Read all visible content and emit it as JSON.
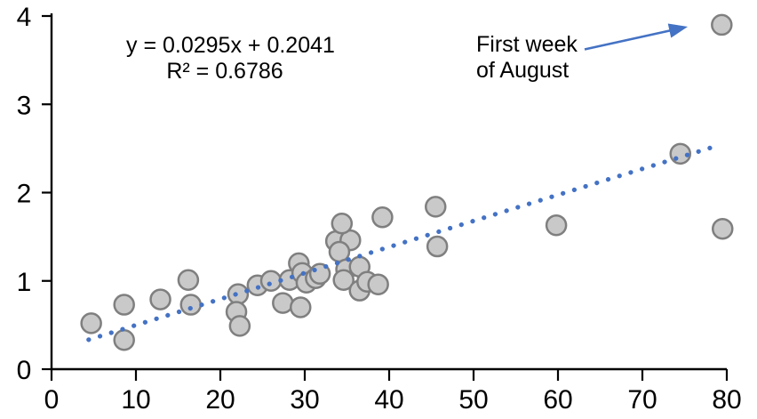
{
  "chart_data": {
    "type": "scatter",
    "title": "",
    "xlabel": "",
    "ylabel": "",
    "xlim": [
      0,
      80
    ],
    "ylim": [
      0,
      4
    ],
    "x_ticks": [
      0,
      10,
      20,
      30,
      40,
      50,
      60,
      70,
      80
    ],
    "y_ticks": [
      0,
      1,
      2,
      3,
      4
    ],
    "grid": false,
    "legend": false,
    "points": [
      [
        4.7,
        0.52
      ],
      [
        8.6,
        0.73
      ],
      [
        8.6,
        0.33
      ],
      [
        12.9,
        0.79
      ],
      [
        16.2,
        1.01
      ],
      [
        16.5,
        0.73
      ],
      [
        22.1,
        0.85
      ],
      [
        21.9,
        0.65
      ],
      [
        22.3,
        0.49
      ],
      [
        24.4,
        0.95
      ],
      [
        26.0,
        1.0
      ],
      [
        28.2,
        1.01
      ],
      [
        29.3,
        1.2
      ],
      [
        29.7,
        1.09
      ],
      [
        30.2,
        0.98
      ],
      [
        31.3,
        1.03
      ],
      [
        31.8,
        1.08
      ],
      [
        27.4,
        0.75
      ],
      [
        29.5,
        0.7
      ],
      [
        33.7,
        1.45
      ],
      [
        35.4,
        1.46
      ],
      [
        34.1,
        1.33
      ],
      [
        34.4,
        1.65
      ],
      [
        34.9,
        1.13
      ],
      [
        36.5,
        1.16
      ],
      [
        34.6,
        1.01
      ],
      [
        36.5,
        0.89
      ],
      [
        37.4,
        0.99
      ],
      [
        38.7,
        0.96
      ],
      [
        39.2,
        1.72
      ],
      [
        45.5,
        1.84
      ],
      [
        45.7,
        1.39
      ],
      [
        59.8,
        1.63
      ],
      [
        74.5,
        2.44
      ],
      [
        79.4,
        3.9
      ],
      [
        79.5,
        1.59
      ]
    ],
    "trendline": {
      "equation_label": "y = 0.0295x + 0.2041",
      "r2_label": "R² = 0.6786",
      "slope": 0.0295,
      "intercept": 0.2041,
      "x_start": 4.4,
      "x_end": 78.8,
      "style": "dotted"
    },
    "annotation": {
      "line1": "First week",
      "line2": "of August",
      "target_point": [
        79.4,
        3.9
      ]
    },
    "colors": {
      "trendline": "#4472C4",
      "arrow": "#4472C4",
      "marker_fill": "#C9C9C9",
      "marker_stroke": "#7F7F7F",
      "axis": "#000000",
      "text": "#000000"
    }
  }
}
